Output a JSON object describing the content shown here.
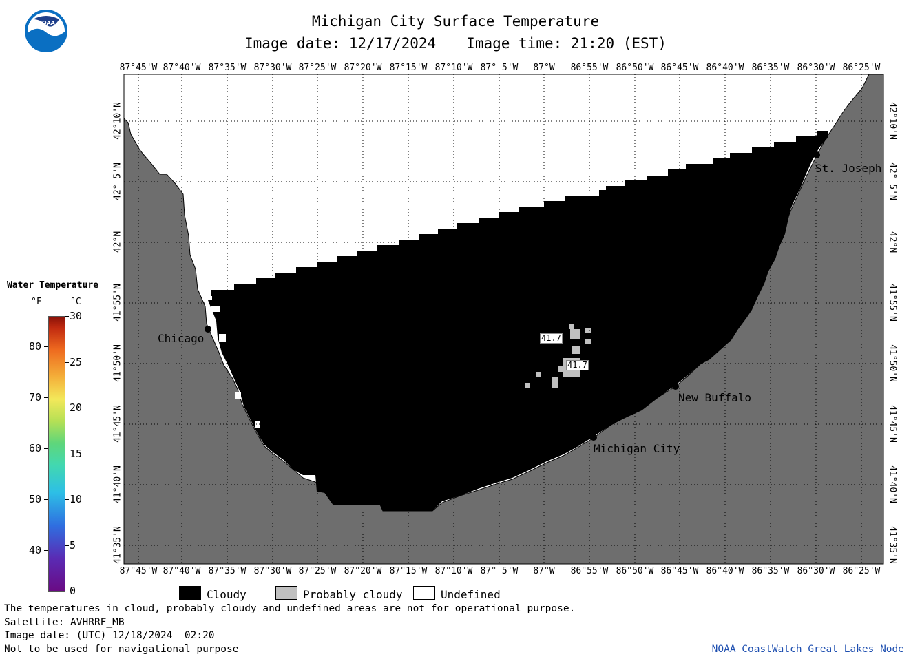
{
  "title": "Michigan City Surface Temperature",
  "image_date_label": "Image date: 12/17/2024",
  "image_time_label": "Image time: 21:20 (EST)",
  "logo_text": "NOAA",
  "lon_labels": [
    "87°45'W",
    "87°40'W",
    "87°35'W",
    "87°30'W",
    "87°25'W",
    "87°20'W",
    "87°15'W",
    "87°10'W",
    "87° 5'W",
    "87°W",
    "86°55'W",
    "86°50'W",
    "86°45'W",
    "86°40'W",
    "86°35'W",
    "86°30'W",
    "86°25'W"
  ],
  "lat_labels": [
    "42°10'N",
    "42° 5'N",
    "42°N",
    "41°55'N",
    "41°50'N",
    "41°45'N",
    "41°40'N",
    "41°35'N"
  ],
  "cities": [
    "Chicago",
    "St. Joseph",
    "New Buffalo",
    "Michigan City"
  ],
  "temperature_labels": [
    "41.7",
    "41.7"
  ],
  "legend": {
    "title": "Water Temperature",
    "unit_f": "°F",
    "unit_c": "°C",
    "f_ticks": [
      "80",
      "70",
      "60",
      "50",
      "40"
    ],
    "c_ticks": [
      "30",
      "25",
      "20",
      "15",
      "10",
      "5",
      "0"
    ]
  },
  "categories": [
    "Cloudy",
    "Probably cloudy",
    "Undefined"
  ],
  "category_colors": {
    "cloudy": "#000000",
    "probably_cloudy": "#c0c0c0",
    "undefined": "#ffffff",
    "land": "#6e6e6e"
  },
  "footer": {
    "disclaimer": "The temperatures in cloud, probably cloudy and undefined areas are not for operational purpose.",
    "satellite": "Satellite: AVHRRF_MB",
    "utc_date": "Image date: (UTC) 12/18/2024  02:20",
    "nav": "Not to be used for navigational purpose",
    "credit": "NOAA CoastWatch Great Lakes Node"
  }
}
